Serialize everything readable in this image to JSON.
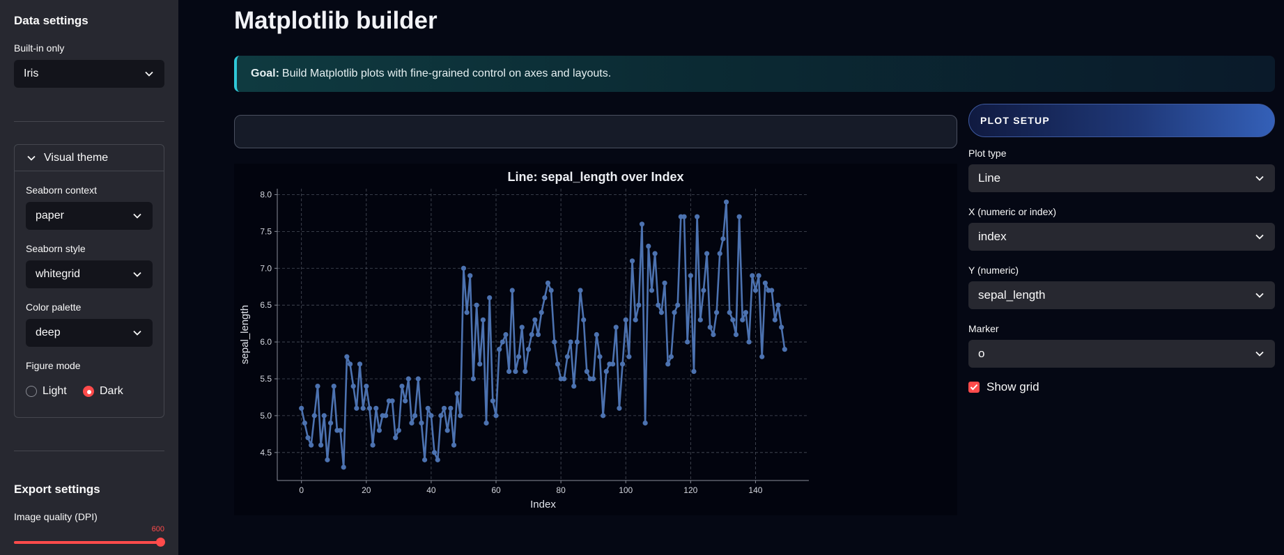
{
  "sidebar": {
    "data_settings_heading": "Data settings",
    "dataset_label": "Built-in only",
    "dataset_value": "Iris",
    "visual_theme": {
      "title": "Visual theme",
      "context_label": "Seaborn context",
      "context_value": "paper",
      "style_label": "Seaborn style",
      "style_value": "whitegrid",
      "palette_label": "Color palette",
      "palette_value": "deep",
      "mode_label": "Figure mode",
      "mode_options": [
        "Light",
        "Dark"
      ],
      "mode_selected": "Dark"
    },
    "export_heading": "Export settings",
    "dpi_label": "Image quality (DPI)",
    "dpi_value": "600"
  },
  "main": {
    "title": "Matplotlib builder",
    "goal_bold": "Goal:",
    "goal_text": "Build Matplotlib plots with fine-grained control on axes and layouts."
  },
  "plot_setup": {
    "heading": "PLOT SETUP",
    "plot_type_label": "Plot type",
    "plot_type_value": "Line",
    "x_label": "X (numeric or index)",
    "x_value": "index",
    "y_label": "Y (numeric)",
    "y_value": "sepal_length",
    "marker_label": "Marker",
    "marker_value": "o",
    "show_grid_label": "Show grid",
    "show_grid": true
  },
  "chart_data": {
    "type": "line",
    "title": "Line: sepal_length over Index",
    "xlabel": "Index",
    "ylabel": "sepal_length",
    "xlim": [
      -7.45,
      156.45
    ],
    "ylim": [
      4.12,
      8.08
    ],
    "xticks": [
      0,
      20,
      40,
      60,
      80,
      100,
      120,
      140
    ],
    "yticks": [
      4.5,
      5.0,
      5.5,
      6.0,
      6.5,
      7.0,
      7.5,
      8.0
    ],
    "grid": true,
    "marker": "o",
    "color": "#4c72b0",
    "series": [
      {
        "name": "sepal_length",
        "values": [
          5.1,
          4.9,
          4.7,
          4.6,
          5.0,
          5.4,
          4.6,
          5.0,
          4.4,
          4.9,
          5.4,
          4.8,
          4.8,
          4.3,
          5.8,
          5.7,
          5.4,
          5.1,
          5.7,
          5.1,
          5.4,
          5.1,
          4.6,
          5.1,
          4.8,
          5.0,
          5.0,
          5.2,
          5.2,
          4.7,
          4.8,
          5.4,
          5.2,
          5.5,
          4.9,
          5.0,
          5.5,
          4.9,
          4.4,
          5.1,
          5.0,
          4.5,
          4.4,
          5.0,
          5.1,
          4.8,
          5.1,
          4.6,
          5.3,
          5.0,
          7.0,
          6.4,
          6.9,
          5.5,
          6.5,
          5.7,
          6.3,
          4.9,
          6.6,
          5.2,
          5.0,
          5.9,
          6.0,
          6.1,
          5.6,
          6.7,
          5.6,
          5.8,
          6.2,
          5.6,
          5.9,
          6.1,
          6.3,
          6.1,
          6.4,
          6.6,
          6.8,
          6.7,
          6.0,
          5.7,
          5.5,
          5.5,
          5.8,
          6.0,
          5.4,
          6.0,
          6.7,
          6.3,
          5.6,
          5.5,
          5.5,
          6.1,
          5.8,
          5.0,
          5.6,
          5.7,
          5.7,
          6.2,
          5.1,
          5.7,
          6.3,
          5.8,
          7.1,
          6.3,
          6.5,
          7.6,
          4.9,
          7.3,
          6.7,
          7.2,
          6.5,
          6.4,
          6.8,
          5.7,
          5.8,
          6.4,
          6.5,
          7.7,
          7.7,
          6.0,
          6.9,
          5.6,
          7.7,
          6.3,
          6.7,
          7.2,
          6.2,
          6.1,
          6.4,
          7.2,
          7.4,
          7.9,
          6.4,
          6.3,
          6.1,
          7.7,
          6.3,
          6.4,
          6.0,
          6.9,
          6.7,
          6.9,
          5.8,
          6.8,
          6.7,
          6.7,
          6.3,
          6.5,
          6.2,
          5.9
        ]
      }
    ]
  }
}
